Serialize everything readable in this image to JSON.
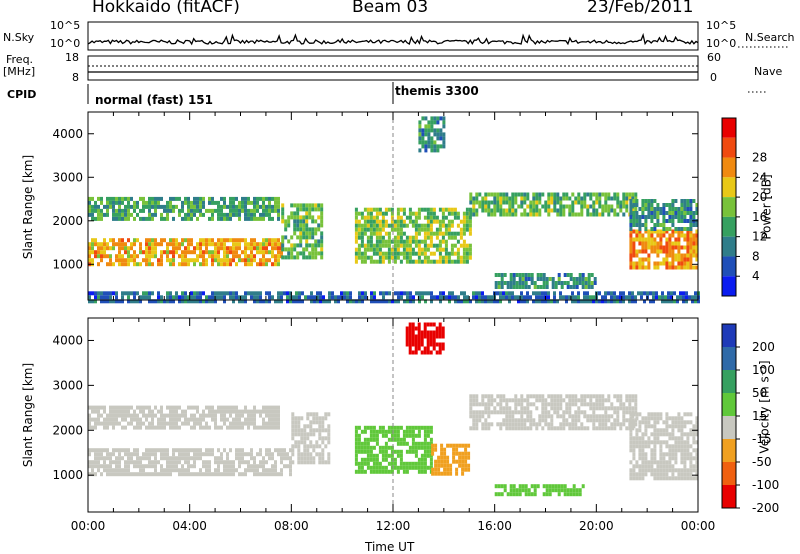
{
  "header": {
    "station": "Hokkaido (fitACF)",
    "beam": "Beam 03",
    "date": "23/Feb/2011"
  },
  "strips": {
    "nsky_label": "N.Sky",
    "nsky_ticks": [
      "10^5",
      "10^0"
    ],
    "nsearch_label": "N.Search",
    "freq_label_1": "Freq.",
    "freq_label_2": "[MHz]",
    "freq_ticks": [
      "18",
      "8"
    ],
    "nave_ticks": [
      "60",
      "0"
    ],
    "nave_label": "Nave",
    "cpid_label": "CPID",
    "cpid_1": "normal (fast) 151",
    "cpid_2": "themis 3300"
  },
  "chart_data": [
    {
      "type": "heatmap",
      "quantity": "Power",
      "ylabel": "Slant Range [km]",
      "ylim": [
        180,
        4500
      ],
      "yticks": [
        1000,
        2000,
        3000,
        4000
      ],
      "xlim": [
        "00:00",
        "24:00"
      ],
      "colorbar": {
        "label": "Power [dB]",
        "ticks": [
          4,
          8,
          12,
          16,
          20,
          24,
          28
        ],
        "colors": [
          "#0a1cf0",
          "#1f4fb8",
          "#2f7d8a",
          "#36a060",
          "#78c23a",
          "#e8c817",
          "#f08a10",
          "#f04a10",
          "#e80000"
        ]
      },
      "bands": [
        {
          "t0": 0.0,
          "t1": 7.6,
          "r0": 1000,
          "r1": 1600,
          "value": 24
        },
        {
          "t0": 7.6,
          "t1": 9.2,
          "r0": 1200,
          "r1": 2400,
          "value": 16
        },
        {
          "t0": 0.0,
          "t1": 7.5,
          "r0": 2050,
          "r1": 2550,
          "value": 14
        },
        {
          "t0": 10.5,
          "t1": 15.0,
          "r0": 1100,
          "r1": 2300,
          "value": 18
        },
        {
          "t0": 15.0,
          "t1": 21.5,
          "r0": 2100,
          "r1": 2650,
          "value": 16
        },
        {
          "t0": 21.3,
          "t1": 24.0,
          "r0": 900,
          "r1": 1800,
          "value": 26
        },
        {
          "t0": 21.3,
          "t1": 24.0,
          "r0": 1800,
          "r1": 2500,
          "value": 12
        },
        {
          "t0": 13.0,
          "t1": 14.0,
          "r0": 3600,
          "r1": 4400,
          "value": 12
        },
        {
          "t0": 16.0,
          "t1": 20.0,
          "r0": 500,
          "r1": 800,
          "value": 12
        },
        {
          "t0": 0.0,
          "t1": 24.0,
          "r0": 180,
          "r1": 380,
          "value": 8
        }
      ]
    },
    {
      "type": "heatmap",
      "quantity": "Velocity",
      "ylabel": "Slant Range [km]",
      "xlabel": "Time UT",
      "ylim": [
        180,
        4500
      ],
      "yticks": [
        1000,
        2000,
        3000,
        4000
      ],
      "xticks": [
        "00:00",
        "04:00",
        "08:00",
        "12:00",
        "16:00",
        "20:00",
        "00:00"
      ],
      "colorbar": {
        "label": "Velocity [m s⁻¹]",
        "ticks": [
          200,
          100,
          50,
          15,
          -15,
          -50,
          -100,
          -200
        ],
        "colors": [
          "#1e3ab8",
          "#2f6aa8",
          "#36a060",
          "#60c83a",
          "#c8c8c0",
          "#f0a020",
          "#f06010",
          "#e80000"
        ]
      },
      "bands": [
        {
          "t0": 0.0,
          "t1": 8.0,
          "r0": 1000,
          "r1": 1600,
          "value": 0
        },
        {
          "t0": 0.0,
          "t1": 7.5,
          "r0": 2050,
          "r1": 2550,
          "value": 0
        },
        {
          "t0": 8.0,
          "t1": 9.5,
          "r0": 1300,
          "r1": 2400,
          "value": 0
        },
        {
          "t0": 10.5,
          "t1": 13.5,
          "r0": 1100,
          "r1": 2100,
          "value": 30
        },
        {
          "t0": 13.5,
          "t1": 15.0,
          "r0": 1050,
          "r1": 1700,
          "value": -40
        },
        {
          "t0": 15.0,
          "t1": 21.5,
          "r0": 2000,
          "r1": 2800,
          "value": 0
        },
        {
          "t0": 21.3,
          "t1": 24.0,
          "r0": 900,
          "r1": 2400,
          "value": 0
        },
        {
          "t0": 12.5,
          "t1": 14.0,
          "r0": 3700,
          "r1": 4400,
          "value": -150
        },
        {
          "t0": 16.0,
          "t1": 19.5,
          "r0": 550,
          "r1": 800,
          "value": 30
        }
      ]
    }
  ]
}
